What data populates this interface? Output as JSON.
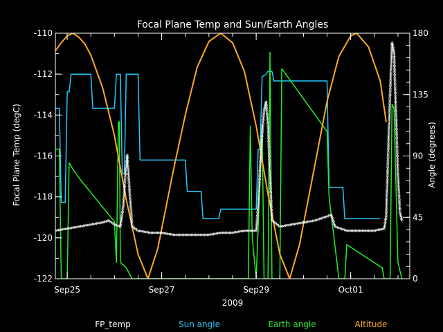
{
  "chart_data": {
    "type": "line",
    "title": "Focal Plane Temp and Sun/Earth Angles",
    "xlabel": "2009",
    "ylabel_left": "Focal Plane Temp (degC)",
    "ylabel_right": "Angle (degrees)",
    "xlim": [
      "2009-09-24T18:00",
      "2009-10-02T06:00"
    ],
    "ylim_left": [
      -122,
      -110
    ],
    "ylim_right": [
      0,
      180
    ],
    "x_ticks": [
      {
        "label": "Sep25",
        "date": "2009-09-25T00:00"
      },
      {
        "label": "Sep27",
        "date": "2009-09-27T00:00"
      },
      {
        "label": "Sep29",
        "date": "2009-09-29T00:00"
      },
      {
        "label": "Oct01",
        "date": "2009-10-01T00:00"
      }
    ],
    "y_ticks_left": [
      "-122",
      "-120",
      "-118",
      "-116",
      "-114",
      "-112",
      "-110"
    ],
    "y_ticks_right": [
      "0",
      "45",
      "90",
      "135",
      "180"
    ],
    "legend_placement": "bottom",
    "grid": false,
    "series": [
      {
        "name": "FP_temp",
        "axis": "left",
        "color": "#ffffff",
        "marker": "asterisk",
        "points": [
          [
            "2009-09-24T18:00",
            -119.7
          ],
          [
            "2009-09-25T00:00",
            -119.6
          ],
          [
            "2009-09-25T06:00",
            -119.5
          ],
          [
            "2009-09-25T12:00",
            -119.4
          ],
          [
            "2009-09-25T18:00",
            -119.3
          ],
          [
            "2009-09-25T21:00",
            -119.2
          ],
          [
            "2009-09-26T00:00",
            -119.4
          ],
          [
            "2009-09-26T03:00",
            -119.5
          ],
          [
            "2009-09-26T04:30",
            -118.5
          ],
          [
            "2009-09-26T05:30",
            -117.0
          ],
          [
            "2009-09-26T06:30",
            -116.0
          ],
          [
            "2009-09-26T07:30",
            -117.5
          ],
          [
            "2009-09-26T09:00",
            -119.5
          ],
          [
            "2009-09-26T12:00",
            -119.7
          ],
          [
            "2009-09-26T18:00",
            -119.8
          ],
          [
            "2009-09-27T00:00",
            -119.8
          ],
          [
            "2009-09-27T06:00",
            -119.9
          ],
          [
            "2009-09-27T12:00",
            -119.9
          ],
          [
            "2009-09-27T18:00",
            -119.9
          ],
          [
            "2009-09-28T00:00",
            -119.9
          ],
          [
            "2009-09-28T06:00",
            -119.8
          ],
          [
            "2009-09-28T12:00",
            -119.8
          ],
          [
            "2009-09-28T18:00",
            -119.7
          ],
          [
            "2009-09-29T00:00",
            -119.7
          ],
          [
            "2009-09-29T01:00",
            -118.5
          ],
          [
            "2009-09-29T02:00",
            -116.5
          ],
          [
            "2009-09-29T03:00",
            -115.0
          ],
          [
            "2009-09-29T04:00",
            -113.8
          ],
          [
            "2009-09-29T05:00",
            -113.4
          ],
          [
            "2009-09-29T06:00",
            -114.5
          ],
          [
            "2009-09-29T07:00",
            -117.0
          ],
          [
            "2009-09-29T08:00",
            -119.2
          ],
          [
            "2009-09-29T12:00",
            -119.5
          ],
          [
            "2009-09-29T18:00",
            -119.4
          ],
          [
            "2009-09-30T00:00",
            -119.3
          ],
          [
            "2009-09-30T06:00",
            -119.2
          ],
          [
            "2009-09-30T12:00",
            -119.0
          ],
          [
            "2009-09-30T14:00",
            -118.9
          ],
          [
            "2009-09-30T16:00",
            -119.5
          ],
          [
            "2009-09-30T22:00",
            -119.7
          ],
          [
            "2009-10-01T06:00",
            -119.7
          ],
          [
            "2009-10-01T12:00",
            -119.7
          ],
          [
            "2009-10-01T17:00",
            -119.6
          ],
          [
            "2009-10-01T18:00",
            -119.0
          ],
          [
            "2009-10-01T19:00",
            -116.0
          ],
          [
            "2009-10-01T20:00",
            -113.0
          ],
          [
            "2009-10-01T21:00",
            -110.5
          ],
          [
            "2009-10-01T22:00",
            -111.0
          ],
          [
            "2009-10-01T23:00",
            -114.0
          ],
          [
            "2009-10-02T00:00",
            -117.0
          ],
          [
            "2009-10-02T01:00",
            -118.8
          ],
          [
            "2009-10-02T02:00",
            -119.2
          ]
        ]
      },
      {
        "name": "Sun angle",
        "axis": "right",
        "color": "#22ccff",
        "marker": "none",
        "points": [
          [
            "2009-09-24T18:00",
            125
          ],
          [
            "2009-09-24T20:00",
            125
          ],
          [
            "2009-09-24T21:00",
            56
          ],
          [
            "2009-09-24T23:00",
            56
          ],
          [
            "2009-09-25T00:00",
            137
          ],
          [
            "2009-09-25T01:00",
            137
          ],
          [
            "2009-09-25T02:00",
            150
          ],
          [
            "2009-09-25T12:00",
            150
          ],
          [
            "2009-09-25T13:00",
            125
          ],
          [
            "2009-09-26T00:00",
            125
          ],
          [
            "2009-09-26T01:00",
            150
          ],
          [
            "2009-09-26T03:00",
            150
          ],
          [
            "2009-09-26T04:00",
            77
          ],
          [
            "2009-09-26T05:00",
            77
          ],
          [
            "2009-09-26T06:00",
            150
          ],
          [
            "2009-09-26T12:00",
            150
          ],
          [
            "2009-09-26T13:00",
            87
          ],
          [
            "2009-09-27T12:00",
            87
          ],
          [
            "2009-09-27T13:00",
            64
          ],
          [
            "2009-09-27T20:00",
            64
          ],
          [
            "2009-09-27T21:00",
            44
          ],
          [
            "2009-09-28T05:00",
            44
          ],
          [
            "2009-09-28T06:00",
            51
          ],
          [
            "2009-09-29T00:00",
            51
          ],
          [
            "2009-09-29T01:00",
            95
          ],
          [
            "2009-09-29T02:00",
            95
          ],
          [
            "2009-09-29T03:00",
            148
          ],
          [
            "2009-09-29T05:00",
            150
          ],
          [
            "2009-09-29T06:00",
            152
          ],
          [
            "2009-09-29T08:00",
            152
          ],
          [
            "2009-09-29T09:00",
            145
          ],
          [
            "2009-09-30T12:00",
            145
          ],
          [
            "2009-09-30T13:00",
            67
          ],
          [
            "2009-09-30T20:00",
            67
          ],
          [
            "2009-09-30T21:00",
            44
          ],
          [
            "2009-10-01T15:00",
            44
          ]
        ]
      },
      {
        "name": "Earth angle",
        "axis": "right",
        "color": "#22ee22",
        "marker": "none",
        "points": [
          [
            "2009-09-24T18:00",
            95
          ],
          [
            "2009-09-24T20:00",
            95
          ],
          [
            "2009-09-24T21:00",
            0
          ],
          [
            "2009-09-25T00:00",
            0
          ],
          [
            "2009-09-25T01:00",
            85
          ],
          [
            "2009-09-25T03:00",
            80
          ],
          [
            "2009-09-25T07:00",
            72
          ],
          [
            "2009-09-26T00:00",
            42
          ],
          [
            "2009-09-26T01:00",
            12
          ],
          [
            "2009-09-26T02:00",
            115
          ],
          [
            "2009-09-26T02:30",
            115
          ],
          [
            "2009-09-26T03:00",
            12
          ],
          [
            "2009-09-26T06:00",
            8
          ],
          [
            "2009-09-26T09:00",
            0
          ],
          [
            "2009-09-28T20:00",
            0
          ],
          [
            "2009-09-28T21:00",
            112
          ],
          [
            "2009-09-28T22:00",
            30
          ],
          [
            "2009-09-29T00:00",
            0
          ],
          [
            "2009-09-29T03:00",
            113
          ],
          [
            "2009-09-29T04:00",
            0
          ],
          [
            "2009-09-29T06:00",
            0
          ],
          [
            "2009-09-29T07:00",
            166
          ],
          [
            "2009-09-29T08:00",
            0
          ],
          [
            "2009-09-29T12:00",
            0
          ],
          [
            "2009-09-29T13:00",
            154
          ],
          [
            "2009-09-30T12:00",
            108
          ],
          [
            "2009-09-30T13:00",
            60
          ],
          [
            "2009-09-30T18:00",
            0
          ],
          [
            "2009-09-30T21:00",
            0
          ],
          [
            "2009-09-30T22:00",
            25
          ],
          [
            "2009-10-01T16:00",
            8
          ],
          [
            "2009-10-01T17:00",
            0
          ],
          [
            "2009-10-01T20:00",
            0
          ],
          [
            "2009-10-01T21:00",
            128
          ],
          [
            "2009-10-01T22:00",
            125
          ],
          [
            "2009-10-02T00:00",
            12
          ],
          [
            "2009-10-02T02:00",
            0
          ]
        ]
      },
      {
        "name": "Altitude",
        "axis": "right",
        "color": "#ffaa22",
        "marker": "none",
        "points": [
          [
            "2009-09-24T18:00",
            167
          ],
          [
            "2009-09-24T21:00",
            173
          ],
          [
            "2009-09-25T00:00",
            178
          ],
          [
            "2009-09-25T03:00",
            180
          ],
          [
            "2009-09-25T06:00",
            177
          ],
          [
            "2009-09-25T09:00",
            172
          ],
          [
            "2009-09-25T12:00",
            164
          ],
          [
            "2009-09-25T18:00",
            140
          ],
          [
            "2009-09-26T00:00",
            105
          ],
          [
            "2009-09-26T06:00",
            58
          ],
          [
            "2009-09-26T12:00",
            18
          ],
          [
            "2009-09-26T17:00",
            0
          ],
          [
            "2009-09-26T22:00",
            22
          ],
          [
            "2009-09-27T06:00",
            80
          ],
          [
            "2009-09-27T12:00",
            120
          ],
          [
            "2009-09-27T18:00",
            155
          ],
          [
            "2009-09-28T00:00",
            174
          ],
          [
            "2009-09-28T06:00",
            180
          ],
          [
            "2009-09-28T12:00",
            173
          ],
          [
            "2009-09-28T18:00",
            152
          ],
          [
            "2009-09-29T00:00",
            112
          ],
          [
            "2009-09-29T06:00",
            62
          ],
          [
            "2009-09-29T12:00",
            18
          ],
          [
            "2009-09-29T17:00",
            0
          ],
          [
            "2009-09-29T22:00",
            25
          ],
          [
            "2009-09-30T06:00",
            85
          ],
          [
            "2009-09-30T12:00",
            130
          ],
          [
            "2009-09-30T18:00",
            163
          ],
          [
            "2009-10-01T00:00",
            178
          ],
          [
            "2009-10-01T03:00",
            180
          ],
          [
            "2009-10-01T09:00",
            170
          ],
          [
            "2009-10-01T15:00",
            145
          ],
          [
            "2009-10-01T18:00",
            115
          ]
        ]
      }
    ]
  }
}
